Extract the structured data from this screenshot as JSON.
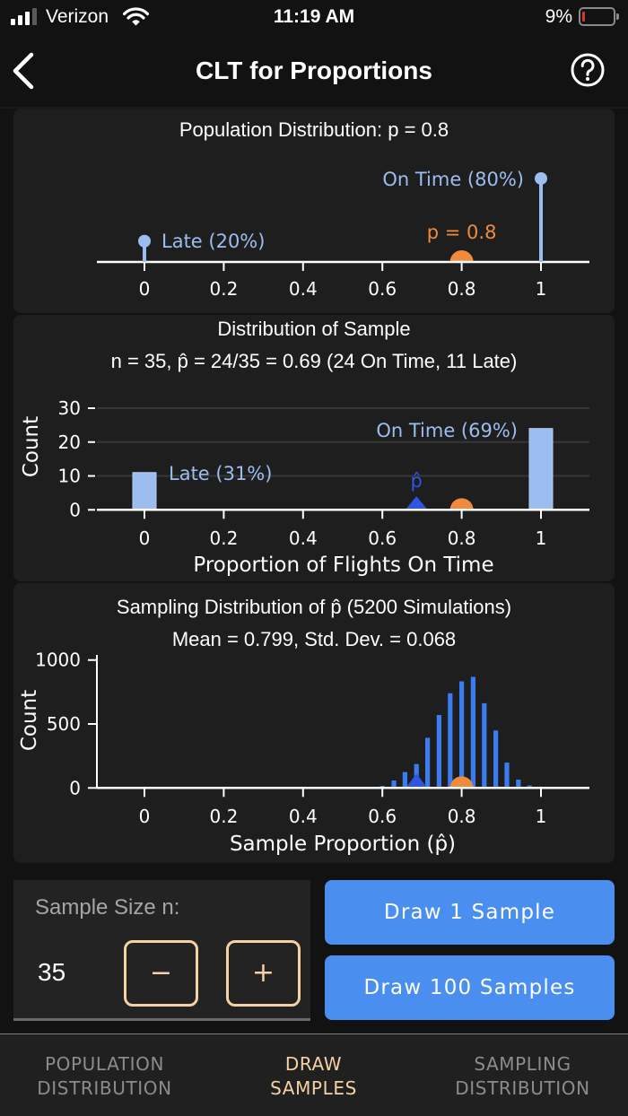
{
  "status_bar": {
    "carrier": "Verizon",
    "time": "11:19 AM",
    "battery_percent": "9%",
    "signal_icon": "cellular-signal-icon",
    "wifi_icon": "wifi-icon",
    "battery_icon": "battery-low-icon"
  },
  "nav": {
    "title": "CLT for Proportions",
    "back_icon": "chevron-left-icon",
    "help_icon": "question-circle-icon"
  },
  "colors": {
    "background": "#121212",
    "card": "#1e1e1e",
    "population_bar": "#9bbdf0",
    "sample_bar": "#9bbdf0",
    "histogram_bar": "#3b7cf0",
    "phat_marker": "#2f55e4",
    "p_marker": "#f08a3c",
    "button": "#4a8ff0",
    "stepper_border": "#f4d2a4",
    "active_tab": "#f4d2a4",
    "inactive_tab": "#8c8c8c"
  },
  "chart_data": [
    {
      "type": "bar",
      "style": "lollipop",
      "title": "Population Distribution: p = 0.8",
      "categories": [
        "Late",
        "On Time"
      ],
      "x": [
        0,
        1
      ],
      "values": [
        20,
        80
      ],
      "value_unit": "percent",
      "bar_labels": [
        "Late (20%)",
        "On Time (80%)"
      ],
      "p": 0.8,
      "p_label": "p = 0.8",
      "xticks": [
        0,
        0.2,
        0.4,
        0.6,
        0.8,
        1
      ],
      "xtick_labels": [
        "0",
        "0.2",
        "0.4",
        "0.6",
        "0.8",
        "1"
      ],
      "xlim": [
        -0.12,
        1.12
      ],
      "xlabel": "",
      "ylabel": "",
      "grid": false
    },
    {
      "type": "bar",
      "title": "Distribution of Sample",
      "subtitle": "n = 35, p̂ = 24/35 = 0.69 (24 On Time, 11 Late)",
      "categories": [
        "Late",
        "On Time"
      ],
      "x": [
        0,
        1
      ],
      "values": [
        11,
        24
      ],
      "bar_labels": [
        "Late (31%)",
        "On Time (69%)"
      ],
      "phat": 0.686,
      "phat_label": "p̂",
      "p": 0.8,
      "xticks": [
        0,
        0.2,
        0.4,
        0.6,
        0.8,
        1
      ],
      "xtick_labels": [
        "0",
        "0.2",
        "0.4",
        "0.6",
        "0.8",
        "1"
      ],
      "yticks": [
        0,
        10,
        20,
        30
      ],
      "ytick_labels": [
        "0",
        "10",
        "20",
        "30"
      ],
      "xlim": [
        -0.12,
        1.12
      ],
      "ylim": [
        0,
        30
      ],
      "xlabel": "Proportion of Flights On Time",
      "ylabel": "Count",
      "grid": true
    },
    {
      "type": "bar",
      "style": "histogram",
      "title": "Sampling Distribution of p̂ (5200 Simulations)",
      "subtitle": "Mean = 0.799, Std. Dev. = 0.068",
      "x": [
        0.543,
        0.571,
        0.6,
        0.629,
        0.657,
        0.686,
        0.714,
        0.743,
        0.771,
        0.8,
        0.829,
        0.857,
        0.886,
        0.914,
        0.943,
        0.971,
        1.0
      ],
      "values": [
        2,
        8,
        16,
        58,
        124,
        187,
        392,
        570,
        740,
        833,
        868,
        662,
        449,
        198,
        65,
        19,
        9
      ],
      "phat": 0.686,
      "p": 0.8,
      "xticks": [
        0,
        0.2,
        0.4,
        0.6,
        0.8,
        1
      ],
      "xtick_labels": [
        "0",
        "0.2",
        "0.4",
        "0.6",
        "0.8",
        "1"
      ],
      "yticks": [
        0,
        500,
        1000
      ],
      "ytick_labels": [
        "0",
        "500",
        "1000"
      ],
      "xlim": [
        -0.12,
        1.12
      ],
      "ylim": [
        0,
        1000
      ],
      "xlabel": "Sample Proportion (p̂)",
      "ylabel": "Count",
      "grid": false
    }
  ],
  "controls": {
    "sample_size_label": "Sample Size n:",
    "sample_size_value": "35",
    "decrement_symbol": "−",
    "increment_symbol": "+",
    "draw_one_label": "Draw 1 Sample",
    "draw_hundred_label": "Draw 100 Samples"
  },
  "tabs": [
    {
      "line1": "POPULATION",
      "line2": "DISTRIBUTION",
      "active": false
    },
    {
      "line1": "DRAW",
      "line2": "SAMPLES",
      "active": true
    },
    {
      "line1": "SAMPLING",
      "line2": "DISTRIBUTION",
      "active": false
    }
  ]
}
